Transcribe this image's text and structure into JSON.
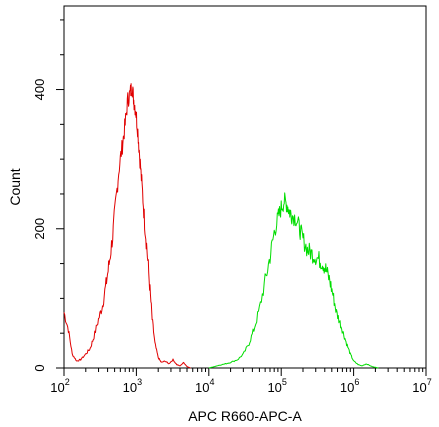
{
  "chart_data": {
    "type": "line",
    "title": "",
    "xlabel": "APC R660-APC-A",
    "ylabel": "Count",
    "x_scale": "log",
    "xlim": [
      100,
      10000000
    ],
    "ylim": [
      0,
      520
    ],
    "grid": false,
    "legend": "none",
    "x_ticks": [
      {
        "value": 100,
        "base": "10",
        "exp": "2"
      },
      {
        "value": 1000,
        "base": "10",
        "exp": "3"
      },
      {
        "value": 10000,
        "base": "10",
        "exp": "4"
      },
      {
        "value": 100000,
        "base": "10",
        "exp": "5"
      },
      {
        "value": 1000000,
        "base": "10",
        "exp": "6"
      },
      {
        "value": 10000000,
        "base": "10",
        "exp": "7"
      }
    ],
    "y_ticks": [
      {
        "value": 0,
        "label": "0"
      },
      {
        "value": 200,
        "label": "200"
      },
      {
        "value": 400,
        "label": "400"
      }
    ],
    "series": [
      {
        "color": "#e00000",
        "x": [
          100,
          115,
          130,
          150,
          170,
          200,
          230,
          260,
          300,
          340,
          380,
          420,
          470,
          520,
          580,
          640,
          700,
          760,
          820,
          870,
          920,
          980,
          1050,
          1120,
          1200,
          1300,
          1400,
          1520,
          1650,
          1800,
          2000,
          2200,
          2500,
          2800,
          3200,
          3600,
          4000,
          4500,
          5000,
          5600
        ],
        "y": [
          80,
          55,
          20,
          10,
          12,
          20,
          28,
          45,
          70,
          90,
          120,
          150,
          190,
          240,
          290,
          320,
          350,
          385,
          395,
          405,
          385,
          370,
          340,
          300,
          260,
          210,
          170,
          120,
          70,
          35,
          15,
          8,
          10,
          6,
          12,
          5,
          3,
          8,
          2,
          0
        ]
      },
      {
        "color": "#00dd00",
        "x": [
          10000,
          12000,
          14000,
          17000,
          20000,
          25000,
          30000,
          36000,
          42000,
          50000,
          60000,
          70000,
          80000,
          90000,
          100000,
          110000,
          120000,
          130000,
          140000,
          160000,
          180000,
          200000,
          230000,
          260000,
          300000,
          340000,
          380000,
          420000,
          470000,
          520000,
          580000,
          650000,
          720000,
          800000,
          900000,
          1000000,
          1150000,
          1300000,
          1500000,
          1800000,
          2200000
        ],
        "y": [
          0,
          2,
          4,
          6,
          8,
          12,
          20,
          35,
          55,
          85,
          125,
          160,
          195,
          215,
          230,
          240,
          235,
          225,
          220,
          215,
          200,
          185,
          170,
          165,
          160,
          155,
          150,
          140,
          125,
          105,
          80,
          65,
          50,
          35,
          20,
          10,
          5,
          3,
          6,
          2,
          0
        ]
      }
    ]
  }
}
